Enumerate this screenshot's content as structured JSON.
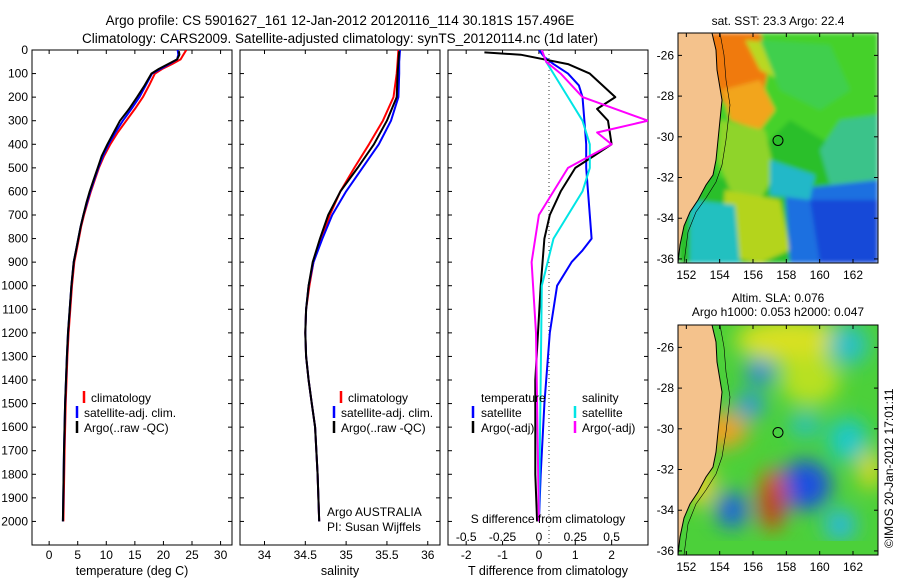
{
  "figure": {
    "title_line1": "Argo profile: CS 5901627_161 12-Jan-2012 20120116_114 30.181S 157.496E",
    "title_line2": "Climatology: CARS2009. Satellite-adjusted climatology: synTS_20120114.nc (1d later)",
    "credit": "©IMOS 20-Jan-2012 17:01:11",
    "argo_label": "Argo AUSTRALIA",
    "pi_label": "PI: Susan Wijffels"
  },
  "colors": {
    "red": "#ff0000",
    "blue": "#0000ff",
    "black": "#000000",
    "cyan": "#00e5e5",
    "magenta": "#ff00ff",
    "land": "#f4c28c"
  },
  "chart_data": [
    {
      "id": "temperature",
      "type": "line",
      "xlabel": "temperature (deg C)",
      "ylabel": "",
      "xlim": [
        -3,
        32
      ],
      "ylim": [
        2100,
        0
      ],
      "xticks": [
        0,
        5,
        10,
        15,
        20,
        25,
        30
      ],
      "yticks": [
        0,
        100,
        200,
        300,
        400,
        500,
        600,
        700,
        800,
        900,
        1000,
        1100,
        1200,
        1300,
        1400,
        1500,
        1600,
        1700,
        1800,
        1900,
        2000
      ],
      "legend": {
        "position": "lower-center",
        "entries": [
          "climatology",
          "satellite-adj. clim.",
          "Argo(..raw -QC)"
        ]
      },
      "series": [
        {
          "name": "climatology",
          "color": "red",
          "x": [
            24.0,
            23.5,
            23.0,
            21.5,
            19.8,
            18.5,
            17.5,
            16.4,
            15.0,
            13.5,
            12.0,
            10.7,
            9.6,
            8.7,
            8.0,
            7.3,
            6.7,
            6.1,
            5.6,
            5.2,
            4.8,
            4.4,
            4.0,
            3.7,
            3.4,
            3.2,
            2.9,
            2.7,
            2.5
          ],
          "y": [
            0,
            20,
            40,
            60,
            80,
            100,
            150,
            200,
            250,
            300,
            350,
            400,
            450,
            500,
            550,
            600,
            650,
            700,
            750,
            800,
            850,
            900,
            1000,
            1100,
            1200,
            1300,
            1500,
            1700,
            2000
          ]
        },
        {
          "name": "satellite-adj. clim.",
          "color": "blue",
          "x": [
            22.5,
            22.6,
            22.4,
            21.0,
            19.5,
            18.0,
            16.9,
            15.8,
            14.4,
            12.9,
            11.6,
            10.4,
            9.4,
            8.6,
            7.9,
            7.2,
            6.6,
            6.0,
            5.5,
            5.1,
            4.7,
            4.3,
            3.9,
            3.6,
            3.3,
            3.1,
            2.8,
            2.6,
            2.4
          ],
          "y": [
            0,
            20,
            40,
            60,
            80,
            100,
            150,
            200,
            250,
            300,
            350,
            400,
            450,
            500,
            550,
            600,
            650,
            700,
            750,
            800,
            850,
            900,
            1000,
            1100,
            1200,
            1300,
            1500,
            1700,
            2000
          ]
        },
        {
          "name": "Argo(..raw -QC)",
          "color": "black",
          "x": [
            22.7,
            22.8,
            22.4,
            20.8,
            19.2,
            17.9,
            16.7,
            15.4,
            14.0,
            12.4,
            11.3,
            10.2,
            9.2,
            8.5,
            7.8,
            7.1,
            6.5,
            6.0,
            5.5,
            5.1,
            4.7,
            4.3,
            3.9,
            3.6,
            3.3,
            3.1,
            2.8,
            2.6,
            2.4
          ],
          "y": [
            5,
            20,
            40,
            60,
            80,
            100,
            150,
            200,
            250,
            300,
            350,
            400,
            450,
            500,
            550,
            600,
            650,
            700,
            750,
            800,
            850,
            900,
            1000,
            1100,
            1200,
            1300,
            1500,
            1700,
            2000
          ]
        }
      ]
    },
    {
      "id": "salinity",
      "type": "line",
      "xlabel": "salinity",
      "ylabel": "",
      "xlim": [
        33.7,
        36.15
      ],
      "ylim": [
        2100,
        0
      ],
      "xticks": [
        34,
        34.5,
        35,
        35.5,
        36
      ],
      "legend": {
        "position": "lower-center",
        "entries": [
          "climatology",
          "satellite-adj. clim.",
          "Argo(..raw -QC)"
        ]
      },
      "series": [
        {
          "name": "climatology",
          "color": "red",
          "x": [
            35.64,
            35.63,
            35.62,
            35.58,
            35.45,
            35.28,
            35.1,
            34.93,
            34.8,
            34.7,
            34.6,
            34.55,
            34.51,
            34.5,
            34.51,
            34.54,
            34.58,
            34.62,
            34.65,
            34.67
          ],
          "y": [
            0,
            50,
            100,
            200,
            300,
            400,
            500,
            600,
            700,
            800,
            900,
            1000,
            1100,
            1200,
            1300,
            1400,
            1500,
            1600,
            1800,
            2000
          ]
        },
        {
          "name": "satellite-adj. clim.",
          "color": "blue",
          "x": [
            35.66,
            35.65,
            35.65,
            35.64,
            35.55,
            35.4,
            35.2,
            35.0,
            34.83,
            34.71,
            34.6,
            34.54,
            34.51,
            34.5,
            34.51,
            34.54,
            34.58,
            34.62,
            34.65,
            34.67
          ],
          "y": [
            0,
            50,
            100,
            200,
            300,
            400,
            500,
            600,
            700,
            800,
            900,
            1000,
            1100,
            1200,
            1300,
            1400,
            1500,
            1600,
            1800,
            2000
          ]
        },
        {
          "name": "Argo(..raw -QC)",
          "color": "black",
          "x": [
            35.65,
            35.64,
            35.63,
            35.62,
            35.5,
            35.34,
            35.14,
            34.93,
            34.78,
            34.68,
            34.59,
            34.54,
            34.51,
            34.5,
            34.51,
            34.54,
            34.58,
            34.62,
            34.65,
            34.67
          ],
          "y": [
            5,
            50,
            100,
            200,
            300,
            400,
            500,
            600,
            700,
            800,
            900,
            1000,
            1100,
            1200,
            1300,
            1400,
            1500,
            1600,
            1800,
            2000
          ]
        }
      ]
    },
    {
      "id": "difference",
      "type": "line",
      "xlabel": "T difference from climatology",
      "xlabel_top": "S difference from climatology",
      "xlim": [
        -2.5,
        3.0
      ],
      "ylim": [
        2100,
        0
      ],
      "xticks_bottom": [
        -2,
        -1,
        0,
        1,
        2
      ],
      "xticks_top": [
        -0.5,
        -0.25,
        0,
        0.25,
        0.5
      ],
      "legend": {
        "position": "lower-center",
        "titles": [
          "temperature",
          "salinity"
        ],
        "entries": [
          "satellite",
          "Argo(-adj)",
          "satellite",
          "Argo(-adj)"
        ]
      },
      "series": [
        {
          "name": "temperature satellite",
          "color": "blue",
          "x": [
            0,
            0.15,
            0.4,
            0.8,
            1.1,
            1.2,
            1.25,
            1.3,
            1.3,
            1.35,
            1.4,
            1.45,
            1.2,
            0.9,
            0.5,
            0.3,
            0.15,
            0.05,
            0
          ],
          "y": [
            0,
            30,
            60,
            100,
            150,
            200,
            300,
            400,
            500,
            600,
            700,
            800,
            850,
            900,
            1000,
            1200,
            1500,
            1800,
            2000
          ]
        },
        {
          "name": "temperature Argo(-adj)",
          "color": "black",
          "x": [
            -1.5,
            -0.5,
            0.8,
            1.4,
            2.1,
            1.6,
            1.9,
            2.0,
            1.5,
            1.0,
            0.6,
            0.3,
            0.15,
            0.05,
            -0.1,
            -0.1,
            -0.05
          ],
          "y": [
            10,
            20,
            60,
            100,
            200,
            250,
            300,
            400,
            450,
            500,
            600,
            700,
            800,
            1000,
            1400,
            1800,
            2000
          ]
        },
        {
          "name": "salinity satellite",
          "color": "cyan",
          "x": [
            0.02,
            0.05,
            0.1,
            0.2,
            0.3,
            0.35,
            0.35,
            0.3,
            0.2,
            0.1,
            0.02,
            0.01,
            0.0
          ],
          "y": [
            0,
            50,
            100,
            200,
            300,
            400,
            500,
            600,
            700,
            800,
            1000,
            1500,
            2000
          ]
        },
        {
          "name": "salinity Argo(-adj)",
          "color": "magenta",
          "x": [
            0.02,
            0.05,
            0.15,
            0.3,
            0.75,
            0.4,
            0.5,
            0.2,
            0.0,
            -0.05,
            -0.02,
            0.0
          ],
          "y": [
            0,
            50,
            100,
            200,
            300,
            350,
            400,
            500,
            700,
            900,
            1200,
            2000
          ]
        }
      ]
    },
    {
      "id": "sst-map",
      "type": "heatmap",
      "title": "sat. SST: 23.3 Argo: 22.4",
      "xlim": [
        151.5,
        163.5
      ],
      "ylim": [
        -36.2,
        -24.9
      ],
      "xticks": [
        152,
        154,
        156,
        158,
        160,
        162
      ],
      "yticks": [
        -26,
        -28,
        -30,
        -32,
        -34,
        -36
      ],
      "argo_position": {
        "lon": 157.5,
        "lat": -30.18
      }
    },
    {
      "id": "sla-map",
      "type": "heatmap",
      "title_line1": "Altim. SLA: 0.076",
      "title_line2": "Argo h1000: 0.053 h2000: 0.047",
      "xlim": [
        151.5,
        163.5
      ],
      "ylim": [
        -36.2,
        -24.9
      ],
      "xticks": [
        152,
        154,
        156,
        158,
        160,
        162
      ],
      "yticks": [
        -26,
        -28,
        -30,
        -32,
        -34,
        -36
      ],
      "argo_position": {
        "lon": 157.5,
        "lat": -30.18
      }
    }
  ]
}
